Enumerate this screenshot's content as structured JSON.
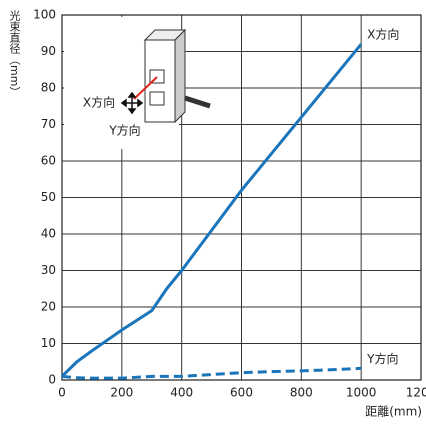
{
  "chart_data": {
    "type": "line",
    "ylabel": "光束直径（mm）",
    "xlabel": "距離(mm)",
    "x": [
      0,
      50,
      100,
      200,
      300,
      350,
      400,
      500,
      600,
      700,
      800,
      900,
      1000
    ],
    "series": [
      {
        "name": "X方向",
        "color": "#1b75bb",
        "dash": false,
        "values": [
          1,
          5,
          8,
          13.7,
          19,
          25,
          30,
          41,
          52,
          62,
          72,
          82,
          92
        ]
      },
      {
        "name": "Y方向",
        "color": "#1b75bb",
        "dash": true,
        "values": [
          1,
          0.6,
          0.5,
          0.5,
          1,
          1,
          1,
          1.5,
          2,
          2.3,
          2.5,
          2.8,
          3.2
        ]
      }
    ],
    "annotations": [
      "X方向",
      "Y方向"
    ],
    "xlim": [
      0,
      1200
    ],
    "xticks": [
      0,
      200,
      400,
      600,
      800,
      1000,
      1200
    ],
    "ylim": [
      0,
      100
    ],
    "yticks": [
      0,
      10,
      20,
      30,
      40,
      50,
      60,
      70,
      80,
      90,
      100
    ],
    "grid": true
  }
}
